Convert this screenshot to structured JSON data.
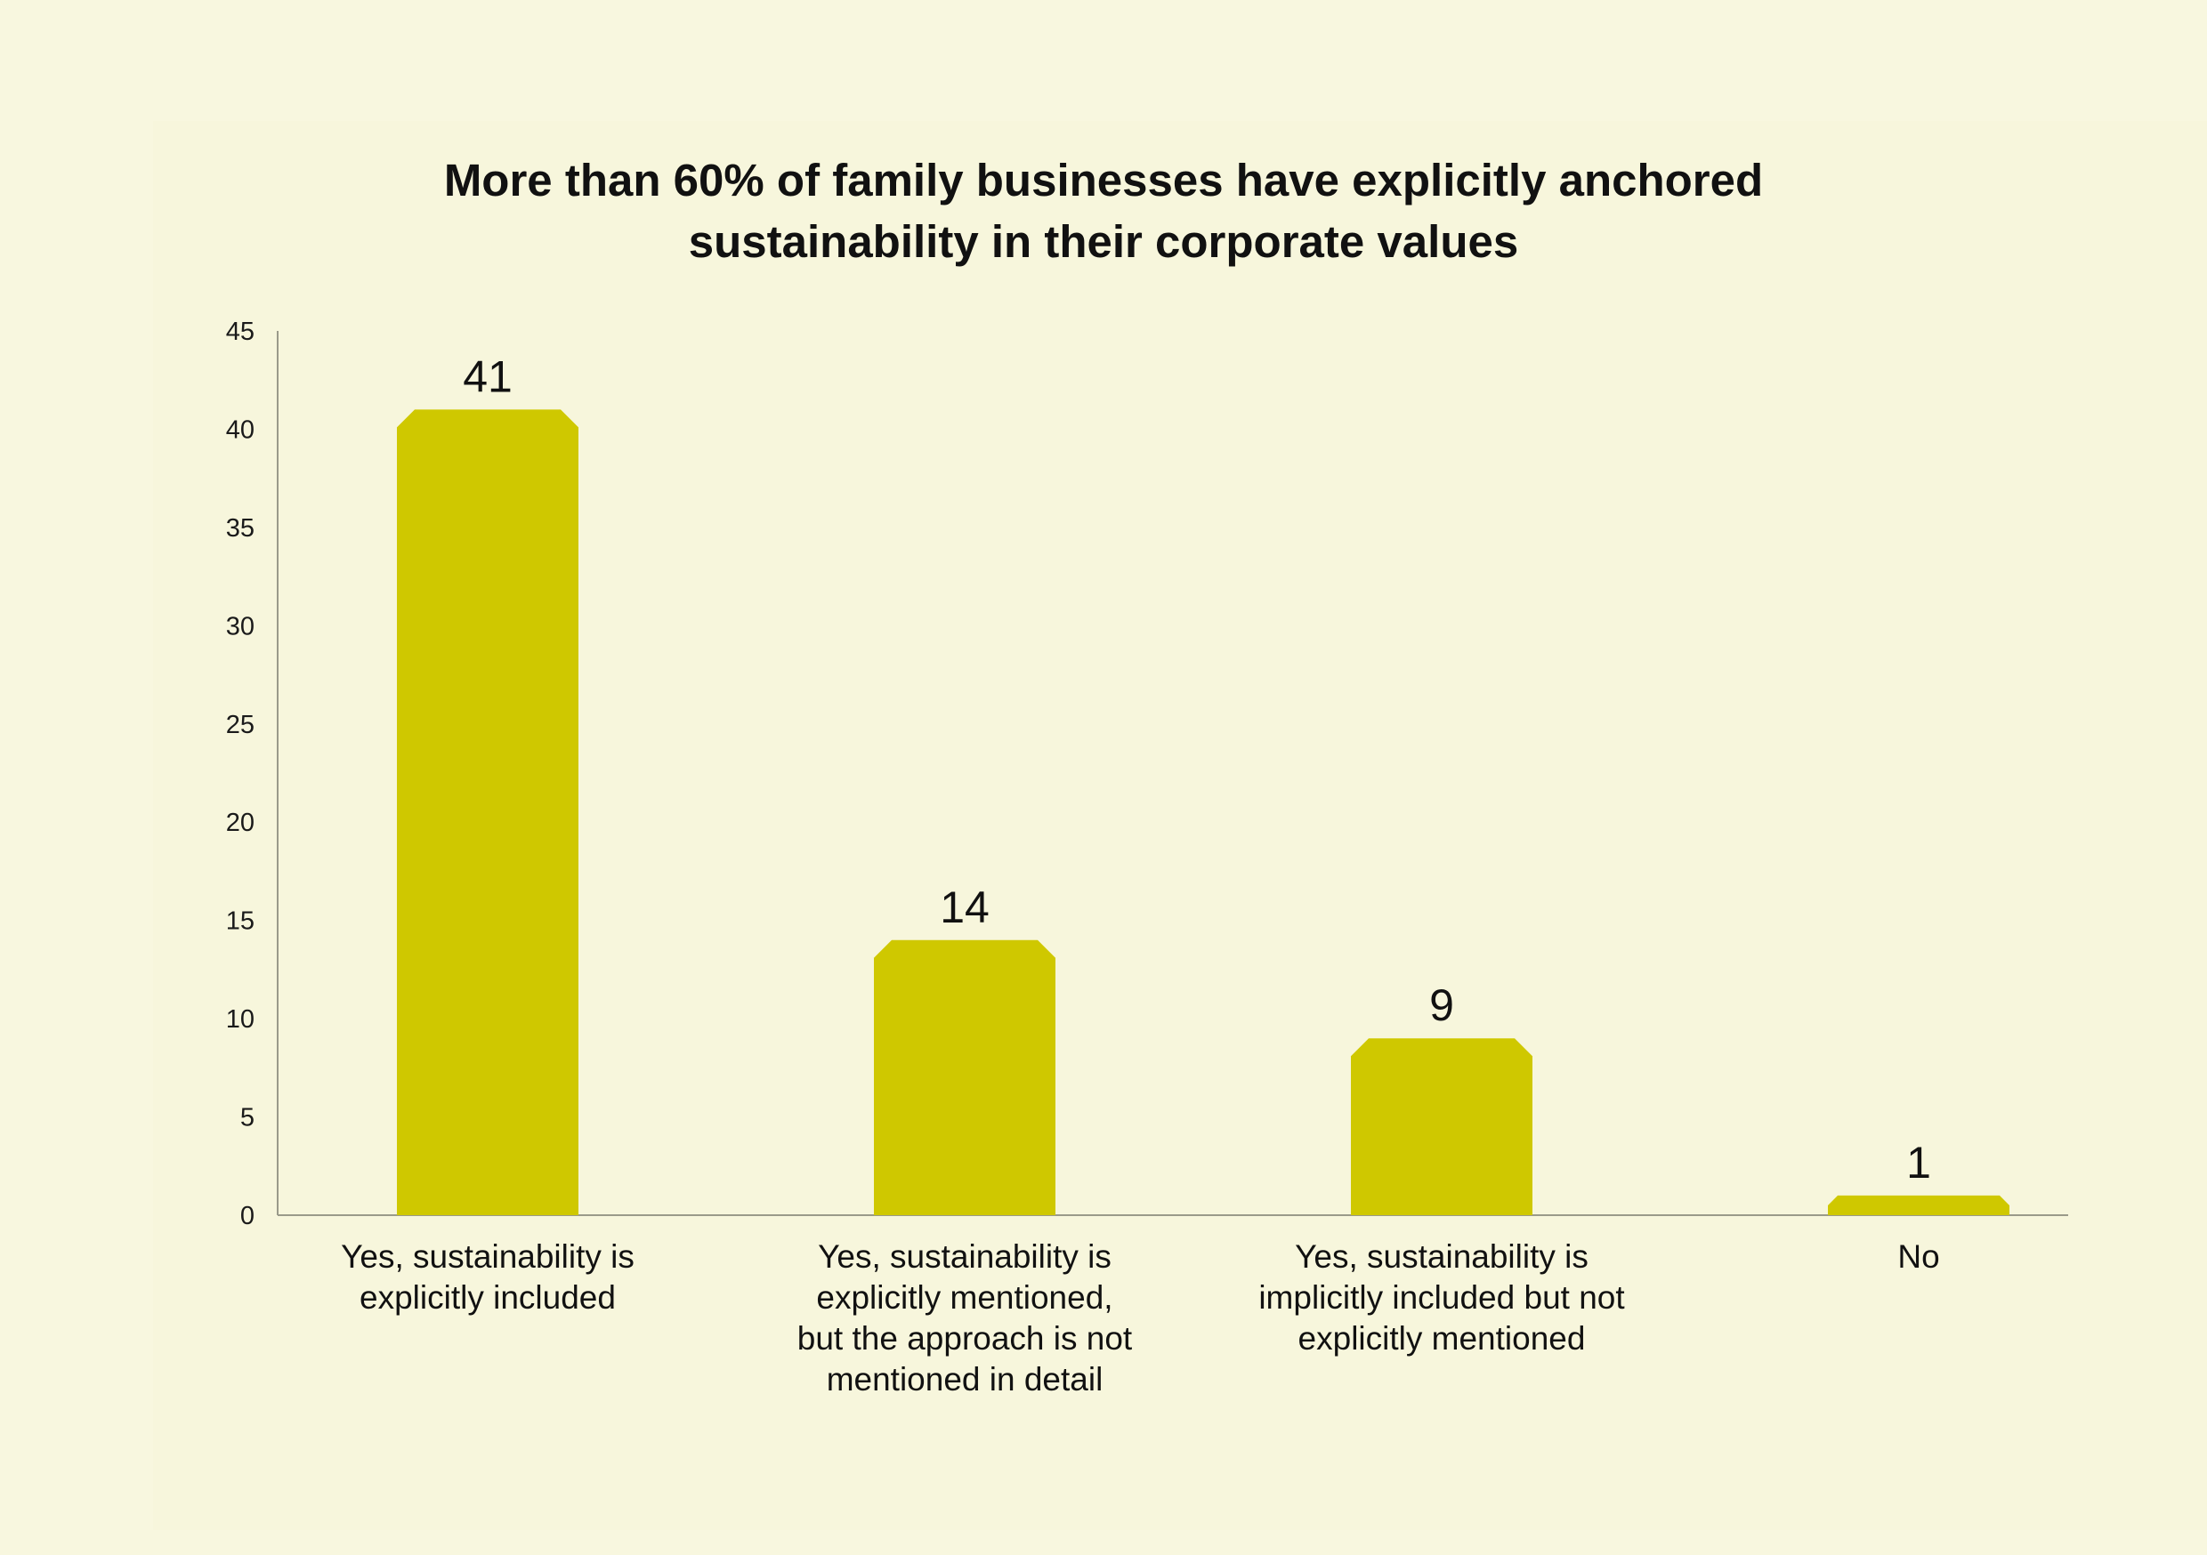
{
  "chart_data": {
    "type": "bar",
    "title_lines": [
      "More than 60% of family businesses have explicitly anchored",
      "sustainability in their corporate values"
    ],
    "categories": [
      [
        "Yes, sustainability is",
        "explicitly included"
      ],
      [
        "Yes, sustainability is",
        "explicitly mentioned,",
        "but the approach is not",
        "mentioned in detail"
      ],
      [
        "Yes, sustainability is",
        "implicitly included but not",
        "explicitly mentioned"
      ],
      [
        "No"
      ]
    ],
    "values": [
      41,
      14,
      9,
      1
    ],
    "ylim": [
      0,
      45
    ],
    "yticks": [
      0,
      5,
      10,
      15,
      20,
      25,
      30,
      35,
      40,
      45
    ],
    "grid": false,
    "legend": "none",
    "colors": {
      "bar": "#cfc800",
      "axis": "#9a9a8a",
      "text": "#111111",
      "background": "#f8f7df"
    }
  }
}
